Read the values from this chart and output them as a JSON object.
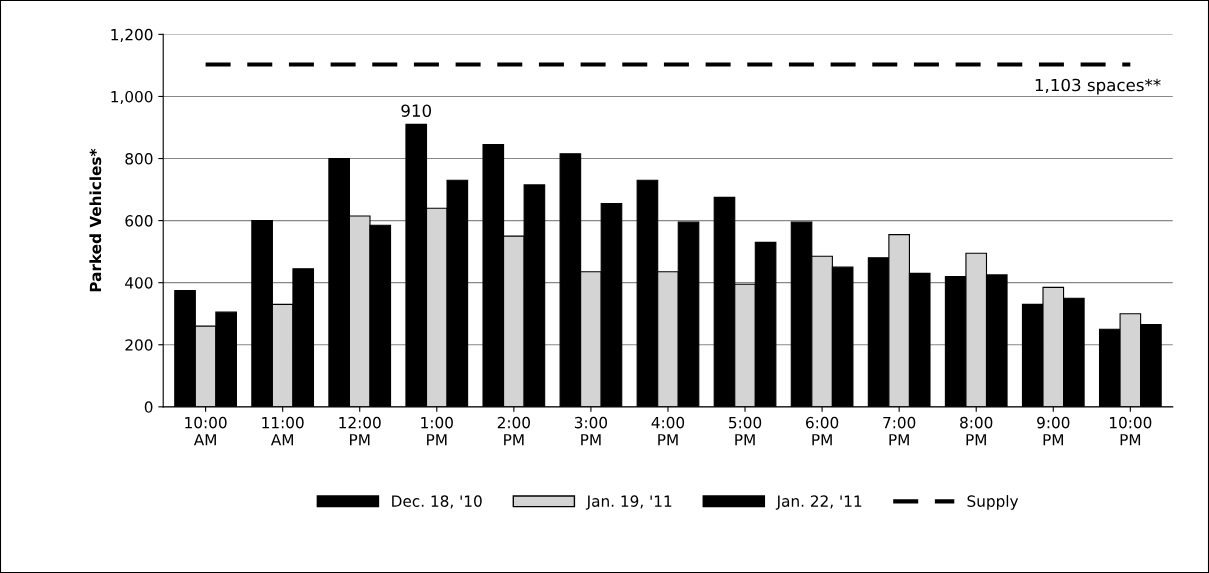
{
  "chart_data": {
    "type": "bar",
    "ylabel": "Parked Vehicles*",
    "categories": [
      "10:00\nAM",
      "11:00\nAM",
      "12:00\nPM",
      "1:00\nPM",
      "2:00\nPM",
      "3:00\nPM",
      "4:00\nPM",
      "5:00\nPM",
      "6:00\nPM",
      "7:00\nPM",
      "8:00\nPM",
      "9:00\nPM",
      "10:00\nPM"
    ],
    "series": [
      {
        "name": "Dec. 18, '10",
        "color": "#000000",
        "values": [
          375,
          600,
          800,
          910,
          845,
          815,
          730,
          675,
          595,
          480,
          420,
          330,
          250
        ],
        "value_labels": [
          null,
          null,
          null,
          "910",
          null,
          null,
          null,
          null,
          null,
          null,
          null,
          null,
          null
        ]
      },
      {
        "name": "Jan. 19, '11",
        "color": "#d4d4d4",
        "values": [
          260,
          330,
          615,
          640,
          550,
          435,
          435,
          395,
          485,
          555,
          495,
          385,
          300
        ]
      },
      {
        "name": "Jan. 22, '11",
        "color": "#000000",
        "values": [
          305,
          445,
          585,
          730,
          715,
          655,
          595,
          530,
          450,
          430,
          425,
          350,
          265
        ]
      },
      {
        "name": "Supply",
        "type": "line",
        "color": "#000000",
        "line_style": "dashed",
        "marker": "none",
        "values": [
          1103,
          1103,
          1103,
          1103,
          1103,
          1103,
          1103,
          1103,
          1103,
          1103,
          1103,
          1103,
          1103
        ]
      }
    ],
    "annotations": [
      {
        "text": "1,103 spaces**",
        "x": "10:00\nPM",
        "y": 1103
      }
    ],
    "ylim": [
      0,
      1200
    ],
    "yticks": [
      0,
      200,
      400,
      600,
      800,
      {
        "value": 1000,
        "label": "1,000"
      },
      {
        "value": 1200,
        "label": "1,200"
      }
    ],
    "grid": "y",
    "legend": "bottom"
  }
}
